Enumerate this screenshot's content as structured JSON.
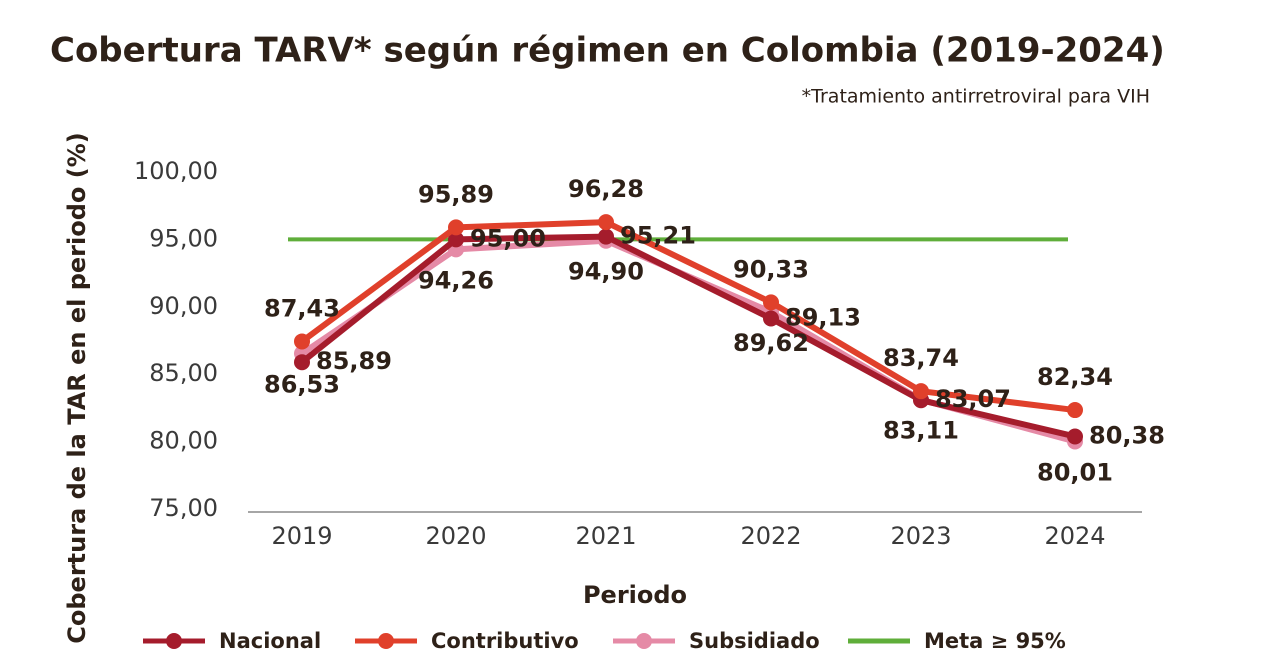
{
  "chart_data": {
    "type": "line",
    "title": "Cobertura TARV* según régimen en Colombia (2019-2024)",
    "subtitle": "*Tratamiento antirretroviral para VIH",
    "x_label": "Periodo",
    "y_label": "Cobertura de la TAR en el periodo (%)",
    "categories": [
      "2019",
      "2020",
      "2021",
      "2022",
      "2023",
      "2024"
    ],
    "ylim": [
      75,
      100
    ],
    "yticks": [
      {
        "value": 75,
        "label": "75,00"
      },
      {
        "value": 80,
        "label": "80,00"
      },
      {
        "value": 85,
        "label": "85,00"
      },
      {
        "value": 90,
        "label": "90,00"
      },
      {
        "value": 95,
        "label": "95,00"
      },
      {
        "value": 100,
        "label": "100,00"
      }
    ],
    "series": [
      {
        "name": "Nacional",
        "color": "#a51c2c",
        "values": [
          85.89,
          95.0,
          95.21,
          89.13,
          83.07,
          80.38
        ],
        "value_labels": [
          "85,89",
          "95,00",
          "95,21",
          "89,13",
          "83,07",
          "80,38"
        ]
      },
      {
        "name": "Contributivo",
        "color": "#e0402b",
        "values": [
          87.43,
          95.89,
          96.28,
          90.33,
          83.74,
          82.34
        ],
        "value_labels": [
          "87,43",
          "95,89",
          "96,28",
          "90,33",
          "83,74",
          "82,34"
        ]
      },
      {
        "name": "Subsidiado",
        "color": "#e58aa6",
        "values": [
          86.53,
          94.26,
          94.9,
          89.62,
          83.11,
          80.01
        ],
        "value_labels": [
          "86,53",
          "94,26",
          "94,90",
          "89,62",
          "83,11",
          "80,01"
        ]
      }
    ],
    "meta": {
      "name": "Meta ≥ 95%",
      "value": 95,
      "color": "#5fae3a"
    }
  }
}
